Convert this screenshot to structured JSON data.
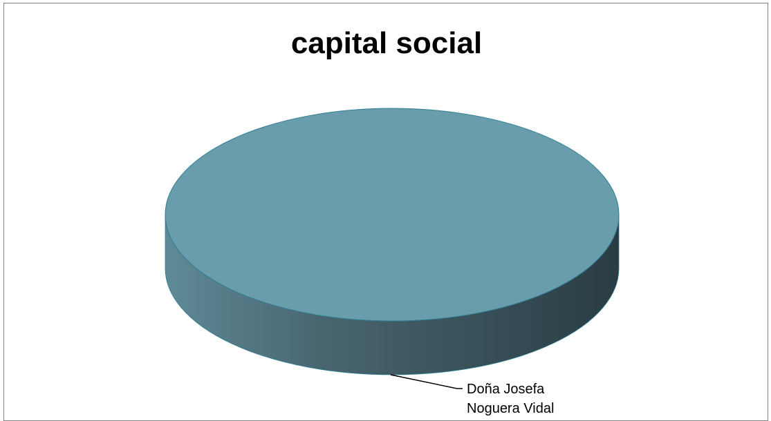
{
  "chart_data": {
    "type": "pie",
    "title": "capital social",
    "slices": [
      {
        "label": "Doña Josefa Noguera Vidal",
        "label_lines": [
          "Doña Josefa",
          "Noguera Vidal"
        ],
        "value": 100
      }
    ],
    "legend": "none",
    "colors": {
      "top": "#6A9DAC",
      "side_light": "#5F8A97",
      "side_dark": "#2A3C43",
      "edge": "#2E7E93"
    }
  }
}
